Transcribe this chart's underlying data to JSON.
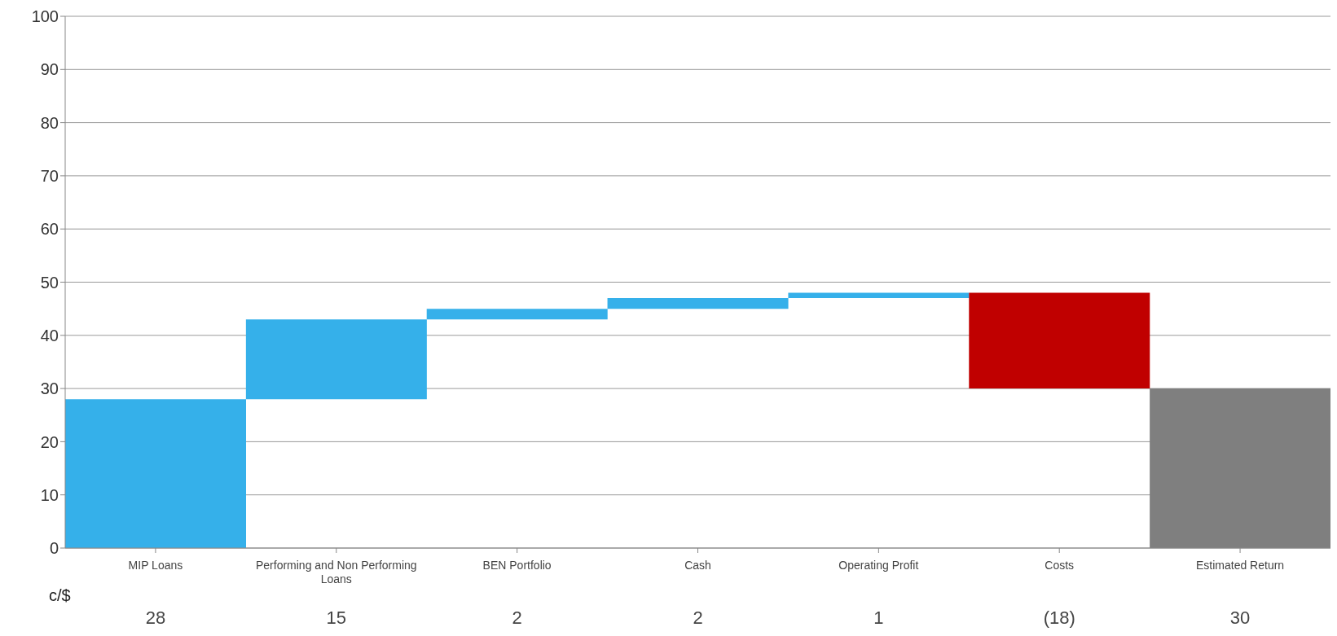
{
  "chart_data": {
    "type": "bar",
    "categories": [
      "MIP Loans",
      "Performing and Non Performing Loans",
      "BEN Portfolio",
      "Cash",
      "Operating Profit",
      "Costs",
      "Estimated Return"
    ],
    "values": [
      28,
      15,
      2,
      2,
      1,
      -18,
      30
    ],
    "base": [
      0,
      28,
      43,
      45,
      47,
      48,
      0
    ],
    "colors": [
      "#35b0ea",
      "#35b0ea",
      "#35b0ea",
      "#35b0ea",
      "#35b0ea",
      "#c00000",
      "#7f7f7f"
    ],
    "value_labels": [
      "28",
      "15",
      "2",
      "2",
      "1",
      "(18)",
      "30"
    ],
    "annotations": [
      "c/$"
    ],
    "ylim": [
      0,
      100
    ],
    "yticks": [
      0,
      10,
      20,
      30,
      40,
      50,
      60,
      70,
      80,
      90,
      100
    ],
    "grid": "y",
    "legend": false
  }
}
